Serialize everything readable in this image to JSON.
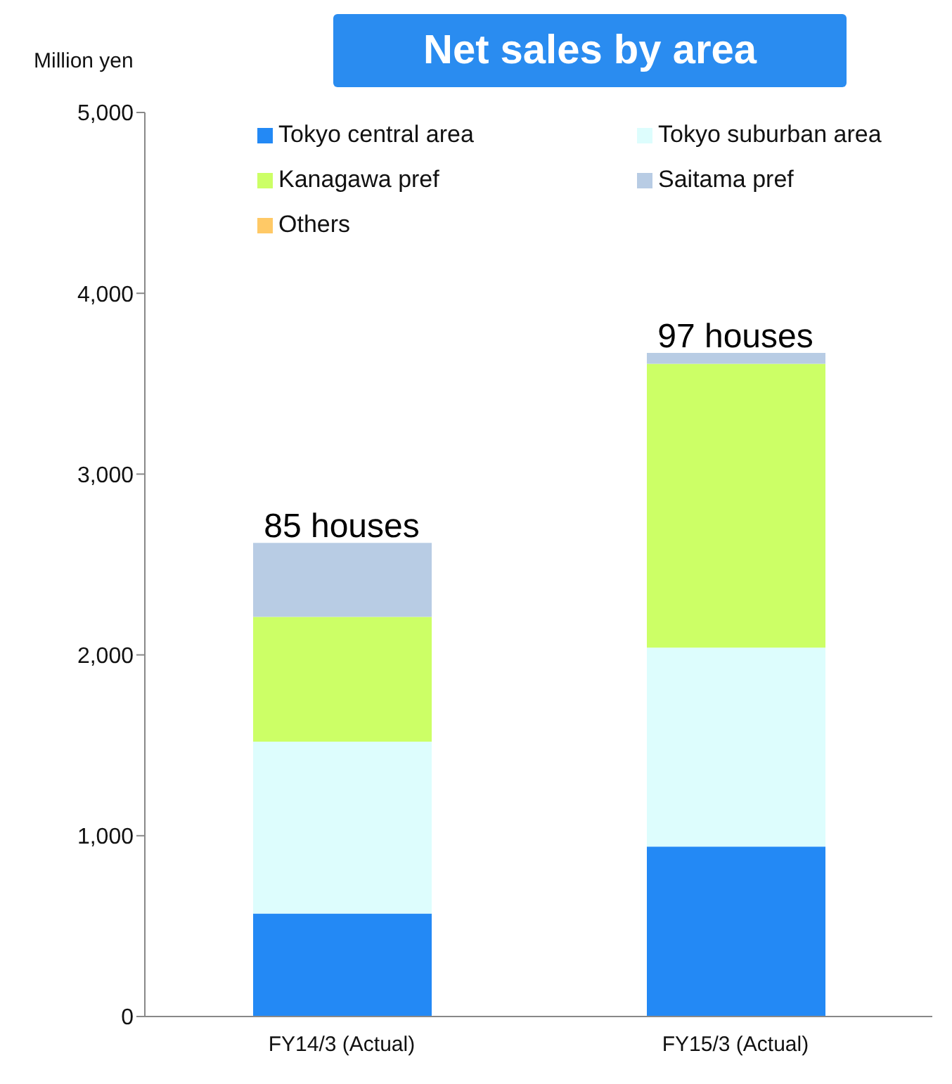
{
  "chart_data": {
    "type": "bar",
    "title": "Net sales by area",
    "categories": [
      "FY14/3 (Actual)",
      "FY15/3 (Actual)"
    ],
    "stacked": true,
    "series": [
      {
        "name": "Tokyo central area",
        "color": "#2389f5",
        "values": [
          570,
          940
        ]
      },
      {
        "name": "Tokyo suburban area",
        "color": "#ddfdfd",
        "values": [
          950,
          1100
        ]
      },
      {
        "name": "Kanagawa pref",
        "color": "#ccff66",
        "values": [
          690,
          1570
        ]
      },
      {
        "name": "Saitama pref",
        "color": "#b8cce4",
        "values": [
          410,
          60
        ]
      },
      {
        "name": "Others",
        "color": "#ffc966",
        "values": [
          0,
          0
        ]
      }
    ],
    "ylim": [
      0,
      5000
    ],
    "yticks": [
      0,
      {
        "value": 1000,
        "label": "1,000"
      },
      {
        "value": 2000,
        "label": "2,000"
      },
      {
        "value": 3000,
        "label": "3,000"
      },
      {
        "value": 4000,
        "label": "4,000"
      },
      {
        "value": 5000,
        "label": "5,000"
      }
    ],
    "grid": false,
    "legend": "top",
    "annotations": [
      "Million yen",
      {
        "text": "85 houses",
        "x": "FY14/3 (Actual)",
        "y": 2620
      },
      {
        "text": "97 houses",
        "x": "FY15/3 (Actual)",
        "y": 3670
      }
    ]
  }
}
